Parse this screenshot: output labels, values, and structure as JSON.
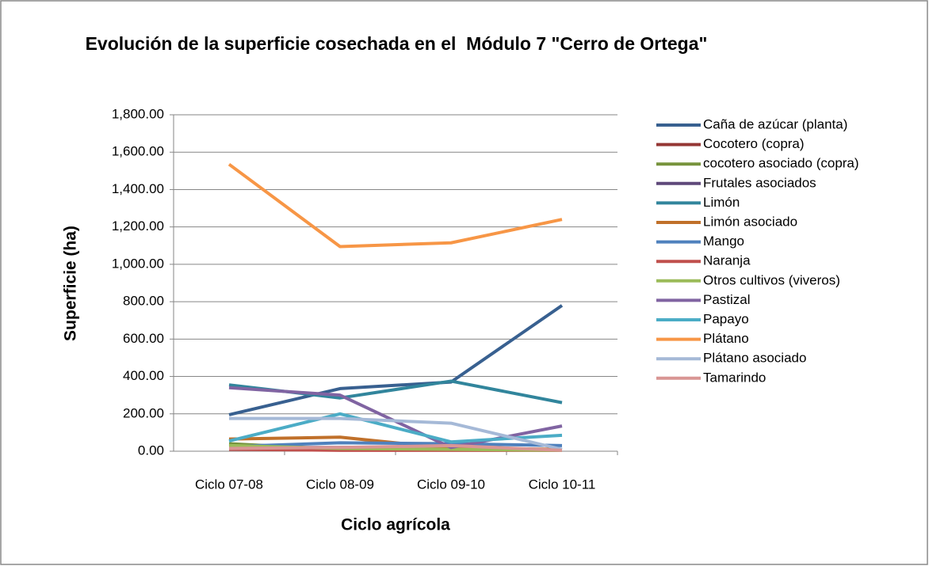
{
  "chart_data": {
    "type": "line",
    "title": "Evolución de la superficie cosechada en el  Módulo 7 \"Cerro de Ortega\"",
    "x_label": "Ciclo agrícola",
    "y_label": "Superficie (ha)",
    "categories": [
      "Ciclo 07-08",
      "Ciclo 08-09",
      "Ciclo 09-10",
      "Ciclo 10-11"
    ],
    "ylim": [
      0,
      1800
    ],
    "yticks": [
      {
        "value": 0,
        "label": "0.00"
      },
      {
        "value": 200,
        "label": "200.00"
      },
      {
        "value": 400,
        "label": "400.00"
      },
      {
        "value": 600,
        "label": "600.00"
      },
      {
        "value": 800,
        "label": "800.00"
      },
      {
        "value": 1000,
        "label": "1,000.00"
      },
      {
        "value": 1200,
        "label": "1,200.00"
      },
      {
        "value": 1400,
        "label": "1,400.00"
      },
      {
        "value": 1600,
        "label": "1,600.00"
      },
      {
        "value": 1800,
        "label": "1,800.00"
      }
    ],
    "grid": true,
    "legend": "right",
    "series": [
      {
        "name": "Caña de azúcar (planta)",
        "color": "#386090",
        "values": [
          195,
          335,
          370,
          780
        ]
      },
      {
        "name": "Cocotero (copra)",
        "color": "#953735",
        "values": [
          20,
          10,
          15,
          10
        ]
      },
      {
        "name": "cocotero asociado (copra)",
        "color": "#77933c",
        "values": [
          40,
          10,
          10,
          5
        ]
      },
      {
        "name": "Frutales asociados",
        "color": "#5f497a",
        "values": [
          20,
          20,
          25,
          5
        ]
      },
      {
        "name": "Limón",
        "color": "#31859c",
        "values": [
          355,
          285,
          375,
          260
        ]
      },
      {
        "name": "Limón asociado",
        "color": "#c0702a",
        "values": [
          65,
          75,
          15,
          10
        ]
      },
      {
        "name": "Mango",
        "color": "#4f81bd",
        "values": [
          25,
          45,
          40,
          30
        ]
      },
      {
        "name": "Naranja",
        "color": "#c0504d",
        "values": [
          10,
          5,
          5,
          5
        ]
      },
      {
        "name": "Otros cultivos (viveros)",
        "color": "#9bbb59",
        "values": [
          30,
          15,
          10,
          5
        ]
      },
      {
        "name": "Pastizal",
        "color": "#8064a2",
        "values": [
          340,
          300,
          20,
          135
        ]
      },
      {
        "name": "Papayo",
        "color": "#4bacc6",
        "values": [
          55,
          200,
          50,
          85
        ]
      },
      {
        "name": "Plátano",
        "color": "#f79646",
        "values": [
          1535,
          1095,
          1115,
          1240
        ]
      },
      {
        "name": "Plátano asociado",
        "color": "#a5b9d7",
        "values": [
          175,
          175,
          150,
          10
        ]
      },
      {
        "name": "Tamarindo",
        "color": "#d99694",
        "values": [
          15,
          20,
          30,
          5
        ]
      }
    ]
  }
}
